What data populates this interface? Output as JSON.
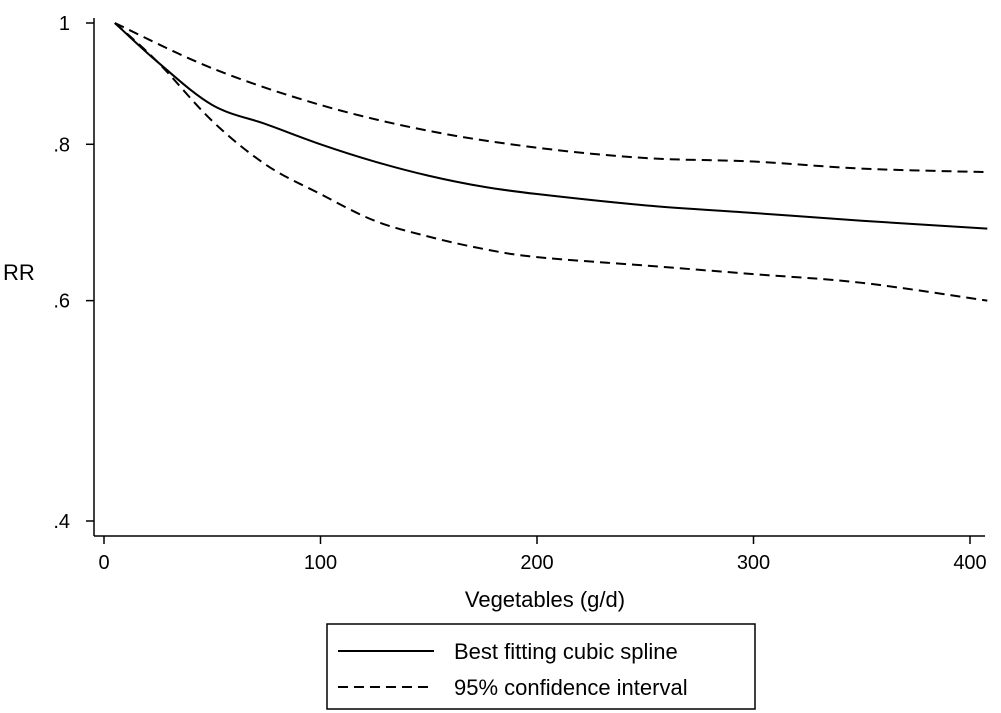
{
  "chart_data": {
    "type": "line",
    "title": "",
    "xlabel": "Vegetables (g/d)",
    "ylabel": "RR",
    "xlim": [
      0,
      410
    ],
    "ylim": [
      0.38,
      1.0
    ],
    "y_scale": "log",
    "x_ticks": [
      0,
      100,
      200,
      300,
      400
    ],
    "x_tick_labels": [
      "0",
      "100",
      "200",
      "300",
      "400"
    ],
    "y_ticks": [
      0.4,
      0.6,
      0.8,
      1
    ],
    "y_tick_labels": [
      ".4",
      ".6",
      ".8",
      "1"
    ],
    "grid": false,
    "legend_position": "bottom-center",
    "series": [
      {
        "name": "Best fitting cubic spline",
        "style": "solid",
        "x": [
          5,
          25,
          50,
          75,
          100,
          125,
          150,
          175,
          200,
          250,
          300,
          350,
          408
        ],
        "y": [
          1.0,
          0.93,
          0.86,
          0.83,
          0.8,
          0.775,
          0.755,
          0.74,
          0.73,
          0.715,
          0.705,
          0.695,
          0.685
        ]
      },
      {
        "name": "95% confidence interval",
        "style": "dashed",
        "x": [
          5,
          50,
          100,
          150,
          200,
          250,
          300,
          350,
          408
        ],
        "y": [
          1.0,
          0.92,
          0.86,
          0.82,
          0.795,
          0.78,
          0.775,
          0.765,
          0.76
        ]
      },
      {
        "name": "",
        "style": "dashed",
        "x": [
          5,
          25,
          50,
          75,
          100,
          125,
          150,
          175,
          200,
          250,
          300,
          350,
          408
        ],
        "y": [
          1.0,
          0.93,
          0.835,
          0.77,
          0.73,
          0.695,
          0.675,
          0.66,
          0.65,
          0.64,
          0.63,
          0.62,
          0.6
        ]
      }
    ]
  }
}
